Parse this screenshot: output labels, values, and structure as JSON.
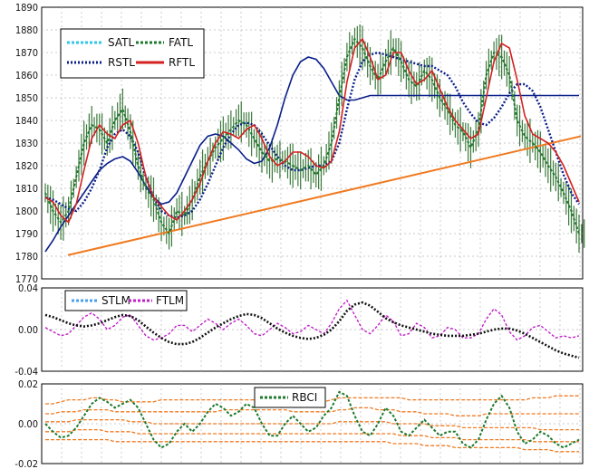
{
  "chart_data": [
    {
      "type": "line",
      "panel": "price",
      "ylim": [
        1770,
        1890
      ],
      "y_ticks": [
        "1890",
        "1880",
        "1870",
        "1860",
        "1850",
        "1840",
        "1830",
        "1820",
        "1810",
        "1800",
        "1790",
        "1780",
        "1770"
      ],
      "grid": true,
      "legend_placement": "top-left",
      "legend": [
        "SATL",
        "FATL",
        "RSTL",
        "RFTL"
      ],
      "colors": {
        "SATL": "#2fc8e8",
        "FATL": "#1f7a2e",
        "RSTL": "#0a1f8a",
        "RFTL": "#d42020",
        "bars": "#3c7a3c",
        "trendline": "#f07a20"
      },
      "series": [
        {
          "name": "RSTL",
          "values": [
            1806,
            1805,
            1803,
            1801,
            1800,
            1804,
            1810,
            1818,
            1828,
            1834,
            1836,
            1833,
            1826,
            1815,
            1806,
            1800,
            1798,
            1797,
            1798,
            1800,
            1805,
            1812,
            1820,
            1828,
            1834,
            1838,
            1839,
            1838,
            1834,
            1829,
            1824,
            1820,
            1818,
            1818,
            1819,
            1820,
            1820,
            1822,
            1830,
            1845,
            1858,
            1866,
            1869,
            1870,
            1869,
            1868,
            1867,
            1866,
            1865,
            1864,
            1864,
            1862,
            1860,
            1855,
            1848,
            1843,
            1839,
            1838,
            1841,
            1846,
            1852,
            1856,
            1856,
            1853,
            1846,
            1836,
            1826,
            1816,
            1808,
            1803
          ]
        },
        {
          "name": "FATL",
          "values": [
            1808,
            1800,
            1795,
            1800,
            1815,
            1830,
            1838,
            1836,
            1830,
            1840,
            1845,
            1835,
            1820,
            1810,
            1805,
            1795,
            1790,
            1800,
            1798,
            1805,
            1815,
            1822,
            1828,
            1832,
            1836,
            1840,
            1838,
            1832,
            1826,
            1822,
            1823,
            1822,
            1820,
            1818,
            1820,
            1816,
            1820,
            1830,
            1850,
            1868,
            1876,
            1872,
            1864,
            1858,
            1866,
            1872,
            1866,
            1858,
            1855,
            1862,
            1858,
            1850,
            1845,
            1838,
            1835,
            1828,
            1836,
            1860,
            1870,
            1868,
            1860,
            1840,
            1833,
            1830,
            1826,
            1820,
            1815,
            1808,
            1800,
            1790
          ]
        },
        {
          "name": "RFTL",
          "values": [
            1806,
            1804,
            1798,
            1795,
            1803,
            1818,
            1832,
            1838,
            1834,
            1832,
            1838,
            1840,
            1830,
            1815,
            1806,
            1802,
            1798,
            1796,
            1800,
            1805,
            1812,
            1822,
            1830,
            1835,
            1834,
            1832,
            1836,
            1838,
            1832,
            1824,
            1820,
            1822,
            1826,
            1826,
            1824,
            1820,
            1819,
            1822,
            1835,
            1857,
            1872,
            1876,
            1868,
            1858,
            1860,
            1870,
            1870,
            1862,
            1856,
            1858,
            1862,
            1854,
            1846,
            1840,
            1836,
            1832,
            1834,
            1850,
            1866,
            1874,
            1872,
            1858,
            1842,
            1834,
            1832,
            1830,
            1826,
            1820,
            1812,
            1804
          ]
        },
        {
          "name": "SATL",
          "values": [
            1782,
            1787,
            1793,
            1798,
            1803,
            1808,
            1813,
            1818,
            1821,
            1823,
            1824,
            1822,
            1817,
            1811,
            1806,
            1803,
            1804,
            1808,
            1815,
            1822,
            1829,
            1833,
            1834,
            1833,
            1830,
            1827,
            1823,
            1821,
            1822,
            1828,
            1838,
            1850,
            1860,
            1866,
            1868,
            1867,
            1863,
            1857,
            1851,
            1849,
            1849,
            1850,
            1851,
            1851,
            1851,
            1851,
            1851,
            1851,
            1851,
            1851,
            1851,
            1851,
            1851,
            1851,
            1851,
            1851,
            1851,
            1851,
            1851,
            1851,
            1851,
            1851,
            1851,
            1851,
            1851,
            1851,
            1851,
            1851,
            1851,
            1851
          ]
        }
      ],
      "trendline": [
        [
          1780.5
        ],
        [
          1833
        ]
      ]
    },
    {
      "type": "line",
      "panel": "momentum",
      "ylim": [
        -0.04,
        0.04
      ],
      "y_ticks": [
        "0.04",
        "0.00",
        "-0.04"
      ],
      "grid": true,
      "legend_placement": "top-left",
      "legend": [
        "STLM",
        "FTLM"
      ],
      "colors": {
        "STLM": "#4aa0f0",
        "FTLM": "#c020c8",
        "black": "#111111"
      },
      "series": [
        {
          "name": "STLM",
          "values": [
            0.014,
            0.012,
            0.009,
            0.006,
            0.004,
            0.003,
            0.004,
            0.006,
            0.009,
            0.012,
            0.014,
            0.013,
            0.009,
            0.003,
            -0.003,
            -0.008,
            -0.012,
            -0.014,
            -0.014,
            -0.012,
            -0.008,
            -0.003,
            0.002,
            0.006,
            0.01,
            0.013,
            0.015,
            0.014,
            0.011,
            0.006,
            0.001,
            -0.003,
            -0.006,
            -0.008,
            -0.009,
            -0.008,
            -0.005,
            0.0,
            0.008,
            0.018,
            0.024,
            0.026,
            0.023,
            0.017,
            0.011,
            0.007,
            0.004,
            0.002,
            0.0,
            -0.002,
            -0.004,
            -0.005,
            -0.006,
            -0.006,
            -0.006,
            -0.005,
            -0.004,
            -0.002,
            0.0,
            0.001,
            0.001,
            -0.001,
            -0.004,
            -0.008,
            -0.012,
            -0.016,
            -0.02,
            -0.023,
            -0.025,
            -0.027
          ]
        },
        {
          "name": "FTLM",
          "values": [
            0.002,
            -0.002,
            -0.006,
            -0.004,
            0.004,
            0.012,
            0.016,
            0.01,
            0.0,
            0.004,
            0.012,
            0.014,
            0.004,
            -0.006,
            -0.01,
            -0.008,
            -0.004,
            0.004,
            0.004,
            -0.002,
            0.004,
            0.01,
            0.006,
            0.0,
            0.006,
            0.01,
            0.004,
            -0.004,
            -0.006,
            0.0,
            0.006,
            0.002,
            -0.004,
            -0.002,
            0.004,
            0.0,
            -0.004,
            0.006,
            0.02,
            0.028,
            0.014,
            0.0,
            -0.004,
            0.004,
            0.014,
            0.008,
            -0.006,
            -0.004,
            0.006,
            0.002,
            -0.008,
            -0.006,
            0.002,
            0.0,
            -0.008,
            -0.008,
            -0.004,
            0.01,
            0.02,
            0.014,
            -0.002,
            -0.01,
            -0.006,
            0.002,
            0.004,
            -0.002,
            -0.008,
            -0.006,
            -0.008,
            -0.006
          ]
        }
      ]
    },
    {
      "type": "line",
      "panel": "rbci",
      "ylim": [
        -0.02,
        0.02
      ],
      "y_ticks": [
        "0.02",
        "0.00",
        "-0.02"
      ],
      "grid": true,
      "legend_placement": "top-center",
      "legend": [
        "RBCI"
      ],
      "colors": {
        "RBCI": "#1f7a2e",
        "bands": "#f07a20"
      },
      "series": [
        {
          "name": "RBCI",
          "values": [
            0.0,
            -0.004,
            -0.007,
            -0.006,
            -0.002,
            0.004,
            0.01,
            0.013,
            0.011,
            0.008,
            0.01,
            0.012,
            0.008,
            0.0,
            -0.008,
            -0.012,
            -0.01,
            -0.004,
            0.0,
            -0.004,
            0.0,
            0.006,
            0.01,
            0.008,
            0.004,
            0.006,
            0.01,
            0.008,
            0.0,
            -0.006,
            -0.006,
            0.0,
            0.004,
            0.0,
            -0.004,
            -0.002,
            0.004,
            0.008,
            0.016,
            0.014,
            0.004,
            -0.004,
            -0.006,
            0.0,
            0.008,
            0.004,
            -0.004,
            -0.006,
            -0.002,
            0.002,
            -0.002,
            -0.006,
            -0.004,
            -0.004,
            -0.01,
            -0.012,
            -0.008,
            0.002,
            0.01,
            0.014,
            0.008,
            -0.004,
            -0.01,
            -0.008,
            -0.004,
            -0.006,
            -0.01,
            -0.012,
            -0.01,
            -0.008
          ]
        },
        {
          "name": "band_upper_outer",
          "values": [
            0.01,
            0.01,
            0.011,
            0.012,
            0.012,
            0.012,
            0.013,
            0.013,
            0.012,
            0.012,
            0.011,
            0.011,
            0.011,
            0.011,
            0.011,
            0.012,
            0.012,
            0.012,
            0.012,
            0.012,
            0.012,
            0.012,
            0.012,
            0.012,
            0.012,
            0.012,
            0.012,
            0.012,
            0.012,
            0.012,
            0.012,
            0.012,
            0.012,
            0.011,
            0.011,
            0.011,
            0.011,
            0.012,
            0.013,
            0.013,
            0.013,
            0.013,
            0.013,
            0.013,
            0.013,
            0.013,
            0.013,
            0.012,
            0.012,
            0.012,
            0.012,
            0.012,
            0.012,
            0.012,
            0.012,
            0.012,
            0.012,
            0.012,
            0.012,
            0.012,
            0.012,
            0.012,
            0.012,
            0.013,
            0.013,
            0.013,
            0.014,
            0.014,
            0.014,
            0.014
          ]
        },
        {
          "name": "band_upper_inner",
          "values": [
            0.005,
            0.005,
            0.006,
            0.006,
            0.006,
            0.007,
            0.007,
            0.007,
            0.007,
            0.006,
            0.006,
            0.006,
            0.006,
            0.006,
            0.006,
            0.006,
            0.006,
            0.006,
            0.006,
            0.006,
            0.006,
            0.006,
            0.006,
            0.007,
            0.007,
            0.007,
            0.007,
            0.007,
            0.007,
            0.007,
            0.007,
            0.007,
            0.006,
            0.006,
            0.006,
            0.006,
            0.006,
            0.006,
            0.007,
            0.007,
            0.008,
            0.008,
            0.008,
            0.007,
            0.007,
            0.007,
            0.006,
            0.006,
            0.006,
            0.005,
            0.005,
            0.005,
            0.005,
            0.004,
            0.004,
            0.004,
            0.004,
            0.005,
            0.005,
            0.005,
            0.005,
            0.005,
            0.005,
            0.005,
            0.005,
            0.005,
            0.005,
            0.005,
            0.005,
            0.005
          ]
        },
        {
          "name": "band_center",
          "values": [
            0.001,
            0.001,
            0.001,
            0.001,
            0.002,
            0.002,
            0.002,
            0.002,
            0.002,
            0.002,
            0.002,
            0.001,
            0.001,
            0.001,
            0.0,
            0.0,
            0.0,
            0.0,
            0.0,
            0.0,
            0.0,
            0.0,
            0.0,
            0.0,
            0.0,
            0.0,
            0.0,
            0.0,
            0.0,
            0.0,
            0.0,
            0.0,
            0.0,
            0.0,
            0.0,
            0.0,
            0.0,
            0.0,
            0.001,
            0.001,
            0.001,
            0.001,
            0.001,
            0.001,
            0.001,
            0.0,
            0.0,
            0.0,
            0.0,
            0.0,
            -0.001,
            -0.001,
            -0.001,
            -0.001,
            -0.002,
            -0.002,
            -0.002,
            -0.002,
            -0.002,
            -0.002,
            -0.002,
            -0.002,
            -0.002,
            -0.002,
            -0.003,
            -0.003,
            -0.003,
            -0.003,
            -0.003,
            -0.003
          ]
        },
        {
          "name": "band_lower_inner",
          "values": [
            -0.004,
            -0.004,
            -0.004,
            -0.004,
            -0.003,
            -0.003,
            -0.003,
            -0.003,
            -0.004,
            -0.004,
            -0.004,
            -0.004,
            -0.005,
            -0.005,
            -0.005,
            -0.005,
            -0.005,
            -0.005,
            -0.005,
            -0.005,
            -0.005,
            -0.005,
            -0.005,
            -0.005,
            -0.005,
            -0.005,
            -0.005,
            -0.005,
            -0.005,
            -0.005,
            -0.005,
            -0.005,
            -0.005,
            -0.005,
            -0.005,
            -0.005,
            -0.005,
            -0.005,
            -0.005,
            -0.005,
            -0.005,
            -0.005,
            -0.005,
            -0.005,
            -0.005,
            -0.005,
            -0.006,
            -0.006,
            -0.006,
            -0.006,
            -0.007,
            -0.007,
            -0.007,
            -0.007,
            -0.008,
            -0.008,
            -0.008,
            -0.008,
            -0.008,
            -0.008,
            -0.008,
            -0.008,
            -0.008,
            -0.009,
            -0.009,
            -0.009,
            -0.009,
            -0.009,
            -0.009,
            -0.009
          ]
        },
        {
          "name": "band_lower_outer",
          "values": [
            -0.008,
            -0.008,
            -0.008,
            -0.008,
            -0.008,
            -0.008,
            -0.008,
            -0.008,
            -0.008,
            -0.009,
            -0.009,
            -0.009,
            -0.009,
            -0.009,
            -0.009,
            -0.009,
            -0.009,
            -0.009,
            -0.009,
            -0.009,
            -0.009,
            -0.009,
            -0.009,
            -0.009,
            -0.009,
            -0.009,
            -0.009,
            -0.009,
            -0.009,
            -0.009,
            -0.009,
            -0.009,
            -0.009,
            -0.009,
            -0.009,
            -0.009,
            -0.009,
            -0.009,
            -0.009,
            -0.009,
            -0.009,
            -0.009,
            -0.009,
            -0.009,
            -0.009,
            -0.01,
            -0.01,
            -0.01,
            -0.01,
            -0.011,
            -0.011,
            -0.011,
            -0.011,
            -0.012,
            -0.012,
            -0.012,
            -0.012,
            -0.012,
            -0.012,
            -0.012,
            -0.012,
            -0.012,
            -0.013,
            -0.013,
            -0.013,
            -0.013,
            -0.014,
            -0.014,
            -0.014,
            -0.014
          ]
        }
      ]
    }
  ]
}
